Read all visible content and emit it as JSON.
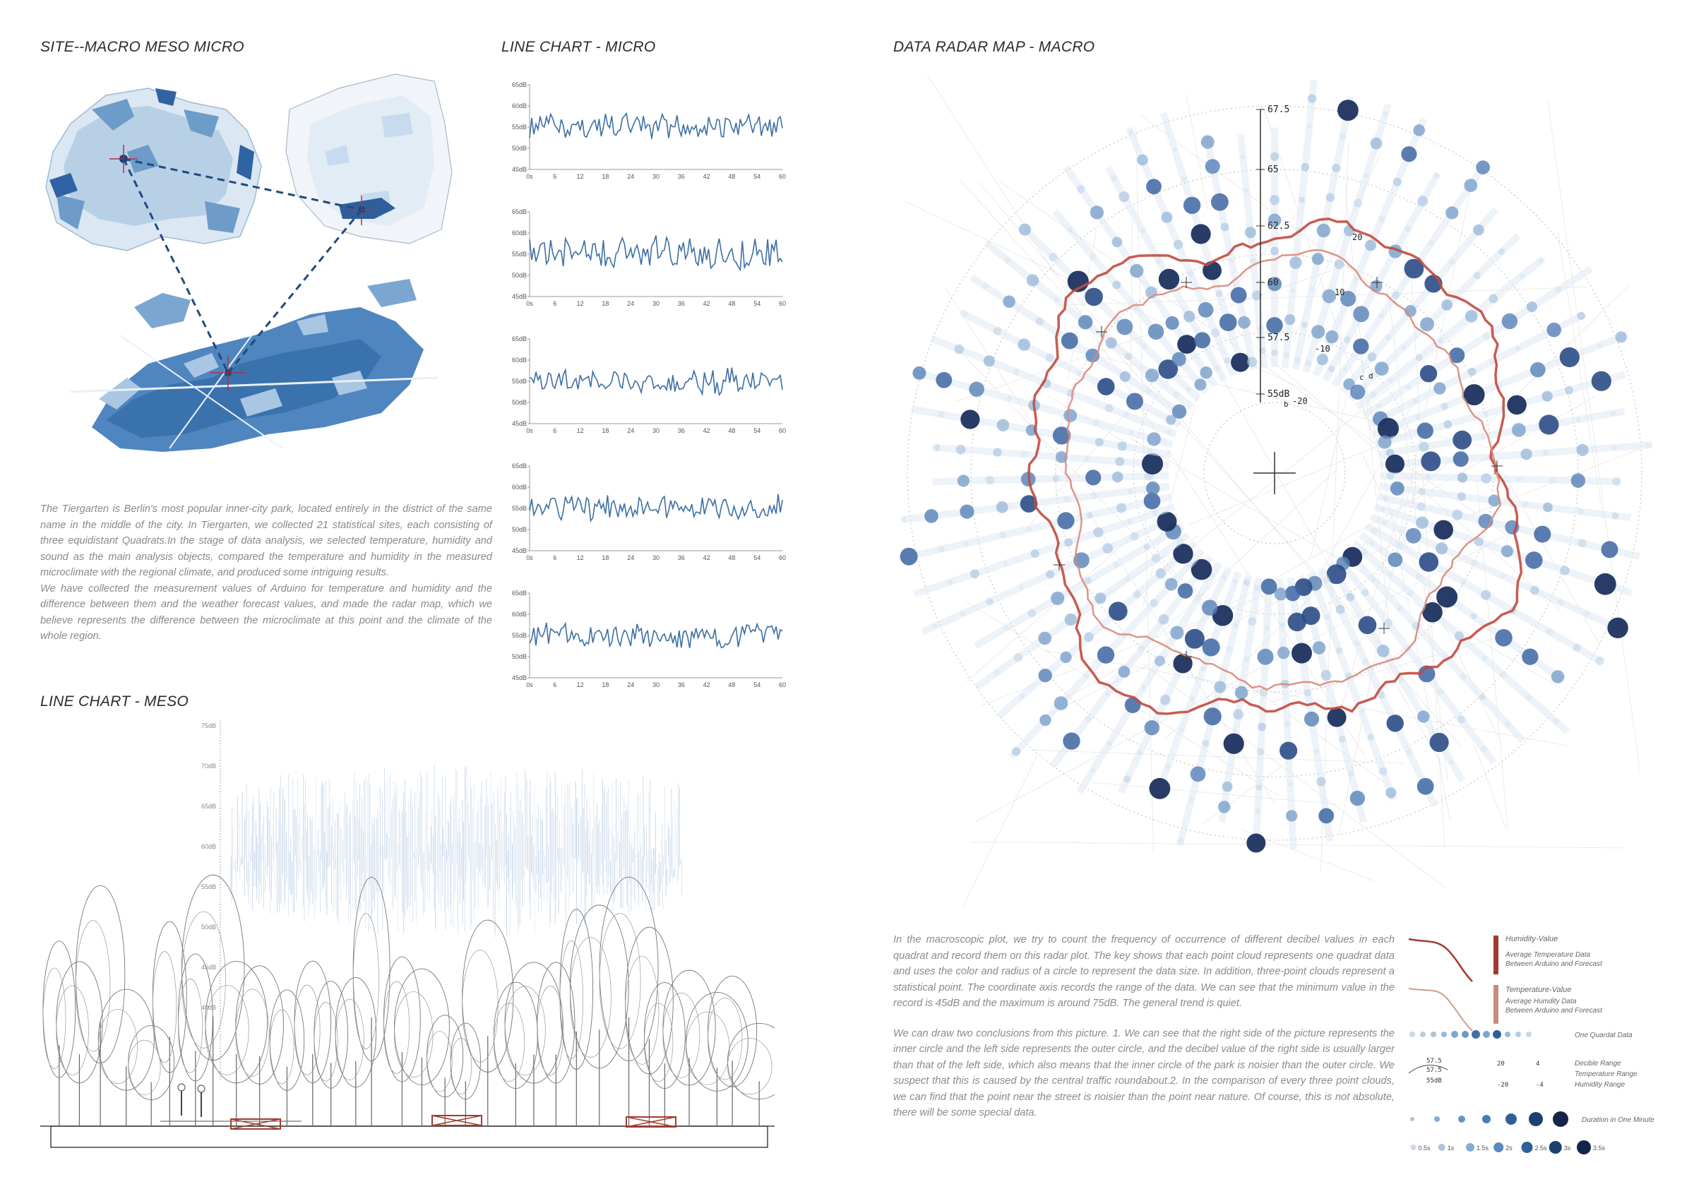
{
  "headings": {
    "site": "SITE--MACRO MESO MICRO",
    "micro": "LINE CHART - MICRO",
    "meso": "LINE CHART - MESO",
    "radar": "DATA RADAR MAP - MACRO"
  },
  "site_text": {
    "p1": "The Tiergarten is Berlin's most popular inner-city park, located entirely in the district of the same name in the middle of the city. In Tiergarten, we collected 21 statistical sites, each consisting of three equidistant Quadrats.In the stage of data analysis, we selected temperature, humidity and sound as the main analysis objects, compared the temperature and humidity in the measured microclimate with the regional climate, and produced some intriguing results.",
    "p2": "We have collected the measurement values of Arduino for temperature and humidity and the difference between them and the weather forecast values, and made the radar map, which we believe represents the difference between the microclimate at this point and the climate of the whole region."
  },
  "radar_text": {
    "p1": "In the macroscopic plot, we try to count the frequency of occurrence of different decibel values in each quadrat and record them on this radar plot. The key shows that each point cloud represents one quadrat data and uses the color and radius of a circle to represent the data size. In addition, three-point clouds represent a statistical point. The coordinate axis records the range of the data. We can see that the minimum value in the record is 45dB and the maximum is around 75dB. The general trend is quiet.",
    "p2": "We can draw two conclusions from this picture. 1. We can see that the right side of the picture represents the inner circle and the left side represents the outer circle, and the decibel value of the right side is usually larger than that of the left side, which also means that the inner circle of the park is noisier than the outer circle. We suspect that this is caused by the central traffic roundabout.2. In the comparison of every three point clouds, we can find that the point near the street is noisier than the point near nature. Of course, this is not absolute, there will be some special data."
  },
  "micro_charts": {
    "y_ticks": [
      "65dB",
      "60dB",
      "55dB",
      "50dB",
      "45dB"
    ],
    "x_ticks": [
      "0s",
      "6",
      "12",
      "18",
      "24",
      "30",
      "36",
      "42",
      "48",
      "54",
      "60"
    ],
    "count": 5,
    "line_color": "#3d6fa3"
  },
  "meso_chart": {
    "y_ticks": [
      "75dB",
      "70dB",
      "65dB",
      "60dB",
      "55dB",
      "50dB",
      "45dB",
      "40dB"
    ],
    "line_color": "#7ea3cc"
  },
  "radar": {
    "axis_labels": [
      "67.5",
      "65",
      "62.5",
      "60",
      "57.5",
      "55dB"
    ],
    "humidity_labels": [
      "20",
      "10",
      "-10",
      "-20"
    ],
    "small_labels": [
      "c",
      "d",
      "b"
    ],
    "humidity_color": "#c24a3e",
    "temperature_color": "#d98a7a"
  },
  "legend": {
    "humidity_title": "Humidity-Value",
    "humidity_sub1": "Average Temperature Data",
    "humidity_sub2": "Between Arduino and Forecast",
    "temperature_title": "Temperature-Value",
    "temperature_sub1": "Average Humdity Data",
    "temperature_sub2": "Between Arduino and Forecast",
    "quadrat": "One Quardat Data",
    "range_decible": "Decible Range",
    "range_temperature": "Temperature Range",
    "range_humidity": "Humidity Range",
    "range_labels": [
      "57.5",
      "57.5",
      "55dB",
      "20",
      "-20",
      "4",
      "-4"
    ],
    "duration": "Duration in One Minute",
    "duration_values": [
      "0.5s",
      "1s",
      "1.5s",
      "2s",
      "2.5s",
      "3s",
      "3.5s"
    ]
  }
}
